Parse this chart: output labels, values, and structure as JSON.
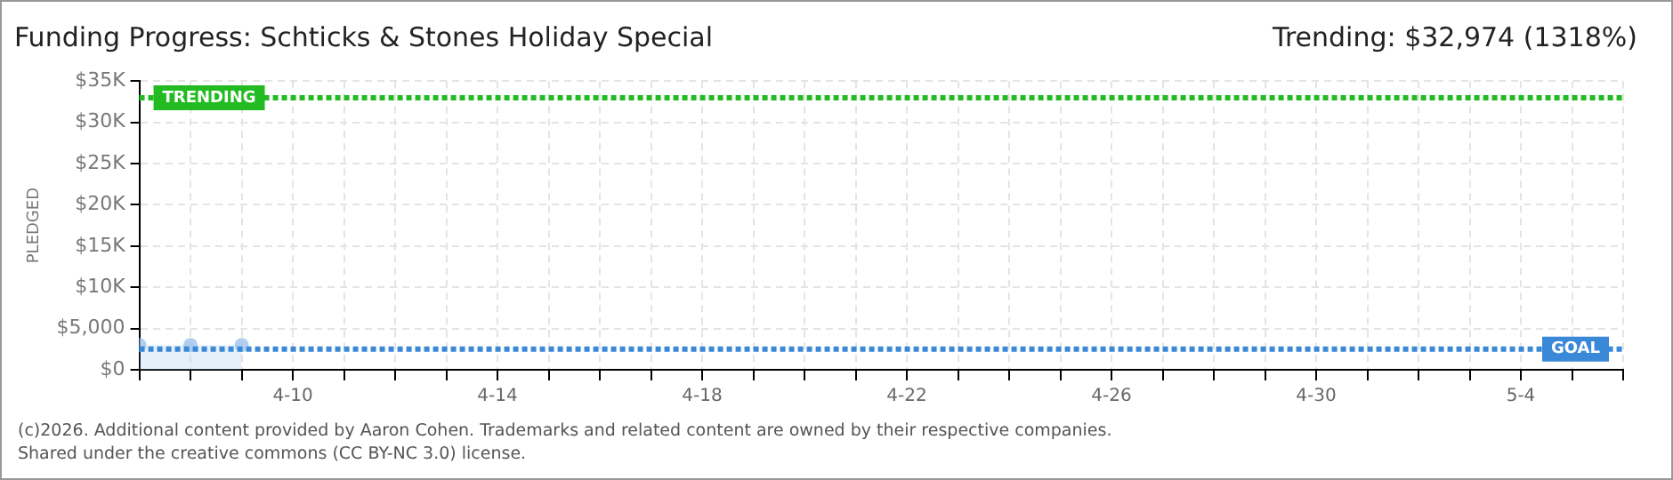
{
  "chart_data": {
    "type": "area",
    "title": "Funding Progress: Schticks & Stones Holiday Special",
    "subtitle": "Trending: $32,974 (1318%)",
    "ylabel": "PLEDGED",
    "x": [
      "--04-07",
      "--04-08",
      "--04-09"
    ],
    "series": [
      {
        "color": "#9dc3ee",
        "values": [
          3000,
          3000,
          3000
        ]
      }
    ],
    "xlim": [
      "--04-07",
      "--05-06"
    ],
    "xticks": [
      {
        "value": "--04-07",
        "label": null
      },
      {
        "value": "--04-08",
        "label": null
      },
      {
        "value": "--04-09",
        "label": null
      },
      {
        "value": "--04-10",
        "label": "4-10"
      },
      {
        "value": "--04-11",
        "label": null
      },
      {
        "value": "--04-12",
        "label": null
      },
      {
        "value": "--04-13",
        "label": null
      },
      {
        "value": "--04-14",
        "label": "4-14"
      },
      {
        "value": "--04-15",
        "label": null
      },
      {
        "value": "--04-16",
        "label": null
      },
      {
        "value": "--04-17",
        "label": null
      },
      {
        "value": "--04-18",
        "label": "4-18"
      },
      {
        "value": "--04-19",
        "label": null
      },
      {
        "value": "--04-20",
        "label": null
      },
      {
        "value": "--04-21",
        "label": null
      },
      {
        "value": "--04-22",
        "label": "4-22"
      },
      {
        "value": "--04-23",
        "label": null
      },
      {
        "value": "--04-24",
        "label": null
      },
      {
        "value": "--04-25",
        "label": null
      },
      {
        "value": "--04-26",
        "label": "4-26"
      },
      {
        "value": "--04-27",
        "label": null
      },
      {
        "value": "--04-28",
        "label": null
      },
      {
        "value": "--04-29",
        "label": null
      },
      {
        "value": "--04-30",
        "label": "4-30"
      },
      {
        "value": "--05-01",
        "label": null
      },
      {
        "value": "--05-02",
        "label": null
      },
      {
        "value": "--05-03",
        "label": null
      },
      {
        "value": "--05-04",
        "label": "5-4"
      },
      {
        "value": "--05-05",
        "label": null
      },
      {
        "value": "--05-06",
        "label": null
      }
    ],
    "ylim": [
      0,
      35000
    ],
    "yticks": [
      {
        "value": 0,
        "label": "$0"
      },
      {
        "value": 5000,
        "label": "$5,000"
      },
      {
        "value": 10000,
        "label": "$10K"
      },
      {
        "value": 15000,
        "label": "$15K"
      },
      {
        "value": 20000,
        "label": "$20K"
      },
      {
        "value": 25000,
        "label": "$25K"
      },
      {
        "value": 30000,
        "label": "$30K"
      },
      {
        "value": 35000,
        "label": "$35K"
      }
    ],
    "ref_lines": [
      {
        "axis": "y",
        "value": 32974,
        "label": "TRENDING",
        "color": "#22bb22",
        "line_style": "dotted"
      },
      {
        "axis": "y",
        "value": 2500,
        "label": "GOAL",
        "color": "#3a88d8",
        "line_style": "dotted"
      }
    ],
    "grid": true,
    "legend": false,
    "marker": "circle",
    "annotations": [
      "(c)2026. Additional content provided by Aaron Cohen. Trademarks and related content are owned by their respective companies.",
      "Shared under the creative commons (CC BY-NC 3.0) license."
    ]
  }
}
